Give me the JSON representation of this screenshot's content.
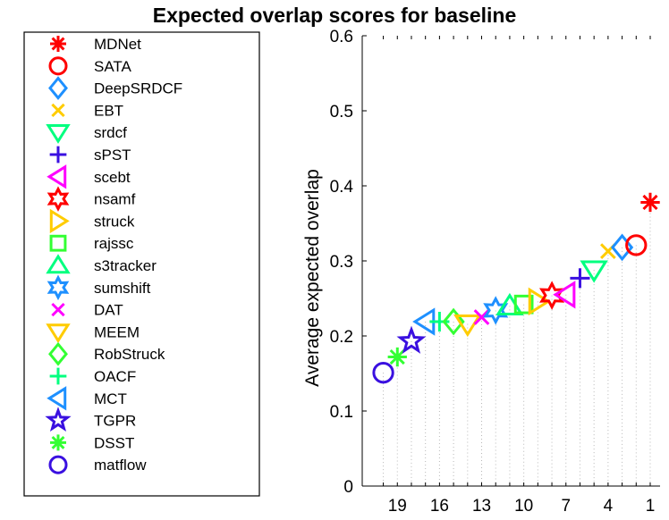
{
  "chart_data": {
    "type": "scatter",
    "title": "Expected overlap scores for baseline",
    "xlabel": "",
    "ylabel": "Average expected overlap",
    "ylim": [
      0,
      0.6
    ],
    "xlim": [
      21.5,
      0.3
    ],
    "x_reversed": true,
    "yticks": [
      "0",
      "0.1",
      "0.2",
      "0.3",
      "0.4",
      "0.5",
      "0.6"
    ],
    "xticks": [
      "19",
      "16",
      "13",
      "10",
      "7",
      "4",
      "1"
    ],
    "xtick_values": [
      19,
      16,
      13,
      10,
      7,
      4,
      1
    ],
    "legend_position": "left",
    "series": [
      {
        "name": "MDNet",
        "rank": 1,
        "value": 0.378,
        "color": "#ff0000",
        "marker": "asterisk"
      },
      {
        "name": "SATA",
        "rank": 2,
        "value": 0.321,
        "color": "#ff0000",
        "marker": "circle"
      },
      {
        "name": "DeepSRDCF",
        "rank": 3,
        "value": 0.318,
        "color": "#1e90ff",
        "marker": "diamond"
      },
      {
        "name": "EBT",
        "rank": 4,
        "value": 0.313,
        "color": "#ffcc00",
        "marker": "x"
      },
      {
        "name": "srdcf",
        "rank": 5,
        "value": 0.288,
        "color": "#00ff7f",
        "marker": "triangle-down"
      },
      {
        "name": "sPST",
        "rank": 6,
        "value": 0.277,
        "color": "#3a10e0",
        "marker": "plus"
      },
      {
        "name": "scebt",
        "rank": 7,
        "value": 0.255,
        "color": "#ff00ff",
        "marker": "triangle-left"
      },
      {
        "name": "nsamf",
        "rank": 8,
        "value": 0.254,
        "color": "#ff0000",
        "marker": "hexagram"
      },
      {
        "name": "struck",
        "rank": 9,
        "value": 0.246,
        "color": "#ffcc00",
        "marker": "triangle-right"
      },
      {
        "name": "rajssc",
        "rank": 10,
        "value": 0.242,
        "color": "#33ff33",
        "marker": "square"
      },
      {
        "name": "s3tracker",
        "rank": 11,
        "value": 0.24,
        "color": "#00ff7f",
        "marker": "triangle-up"
      },
      {
        "name": "sumshift",
        "rank": 12,
        "value": 0.234,
        "color": "#1e90ff",
        "marker": "hexagram"
      },
      {
        "name": "DAT",
        "rank": 13,
        "value": 0.225,
        "color": "#ff00ff",
        "marker": "x"
      },
      {
        "name": "MEEM",
        "rank": 14,
        "value": 0.216,
        "color": "#ffcc00",
        "marker": "triangle-down"
      },
      {
        "name": "RobStruck",
        "rank": 15,
        "value": 0.219,
        "color": "#33ff33",
        "marker": "diamond"
      },
      {
        "name": "OACF",
        "rank": 16,
        "value": 0.219,
        "color": "#00ff7f",
        "marker": "plus"
      },
      {
        "name": "MCT",
        "rank": 17,
        "value": 0.219,
        "color": "#1e90ff",
        "marker": "triangle-left"
      },
      {
        "name": "TGPR",
        "rank": 18,
        "value": 0.193,
        "color": "#3a10e0",
        "marker": "pentagram"
      },
      {
        "name": "DSST",
        "rank": 19,
        "value": 0.172,
        "color": "#33ff33",
        "marker": "asterisk"
      },
      {
        "name": "matflow",
        "rank": 20,
        "value": 0.151,
        "color": "#3a10e0",
        "marker": "circle"
      }
    ]
  }
}
